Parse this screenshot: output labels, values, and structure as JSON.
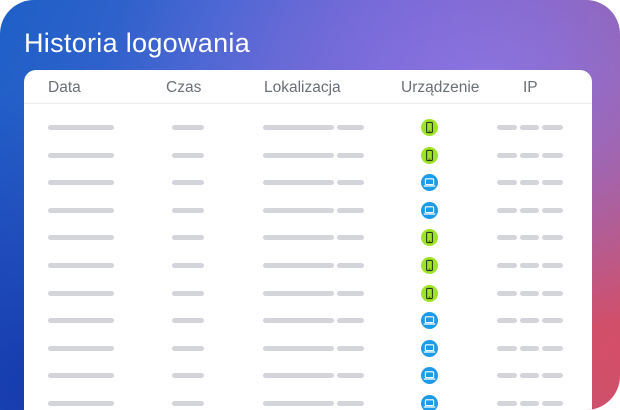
{
  "header": {
    "title": "Historia logowania"
  },
  "table": {
    "columns": [
      "Data",
      "Czas",
      "Lokalizacja",
      "Urządzenie",
      "IP"
    ],
    "rows": [
      {
        "device": "mobile-icon"
      },
      {
        "device": "mobile-icon"
      },
      {
        "device": "laptop-icon"
      },
      {
        "device": "laptop-icon"
      },
      {
        "device": "mobile-icon"
      },
      {
        "device": "mobile-icon"
      },
      {
        "device": "mobile-icon"
      },
      {
        "device": "laptop-icon"
      },
      {
        "device": "laptop-icon"
      },
      {
        "device": "laptop-icon"
      },
      {
        "device": "laptop-icon"
      }
    ]
  },
  "colors": {
    "mobile": "#9fe22a",
    "desktop": "#1d9be8",
    "placeholder_bar": "#d3d5da"
  }
}
